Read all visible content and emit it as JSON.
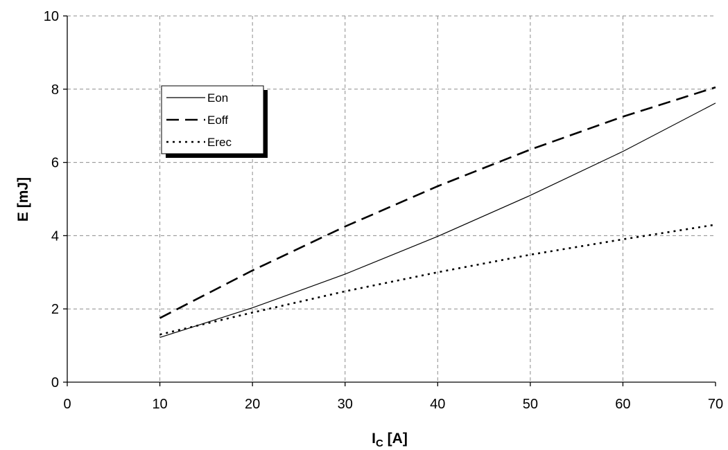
{
  "chart_data": {
    "type": "line",
    "title": "",
    "xlabel": {
      "main": "I",
      "sub": "C",
      "rest": " [A]"
    },
    "ylabel": "E [mJ]",
    "xlim": [
      0,
      70
    ],
    "ylim": [
      0,
      10
    ],
    "xticks": [
      0,
      10,
      20,
      30,
      40,
      50,
      60,
      70
    ],
    "yticks": [
      0,
      2,
      4,
      6,
      8,
      10
    ],
    "grid": true,
    "legend_position": "top-left",
    "x": [
      10,
      20,
      30,
      40,
      50,
      60,
      70
    ],
    "series": [
      {
        "name": "Eon",
        "style": "solid",
        "values": [
          1.22,
          2.03,
          2.95,
          3.98,
          5.1,
          6.3,
          7.62
        ]
      },
      {
        "name": "Eoff",
        "style": "dashed",
        "values": [
          1.75,
          3.05,
          4.25,
          5.35,
          6.35,
          7.25,
          8.05
        ]
      },
      {
        "name": "Erec",
        "style": "dotted",
        "values": [
          1.3,
          1.9,
          2.48,
          3.0,
          3.48,
          3.9,
          4.3
        ]
      }
    ]
  }
}
